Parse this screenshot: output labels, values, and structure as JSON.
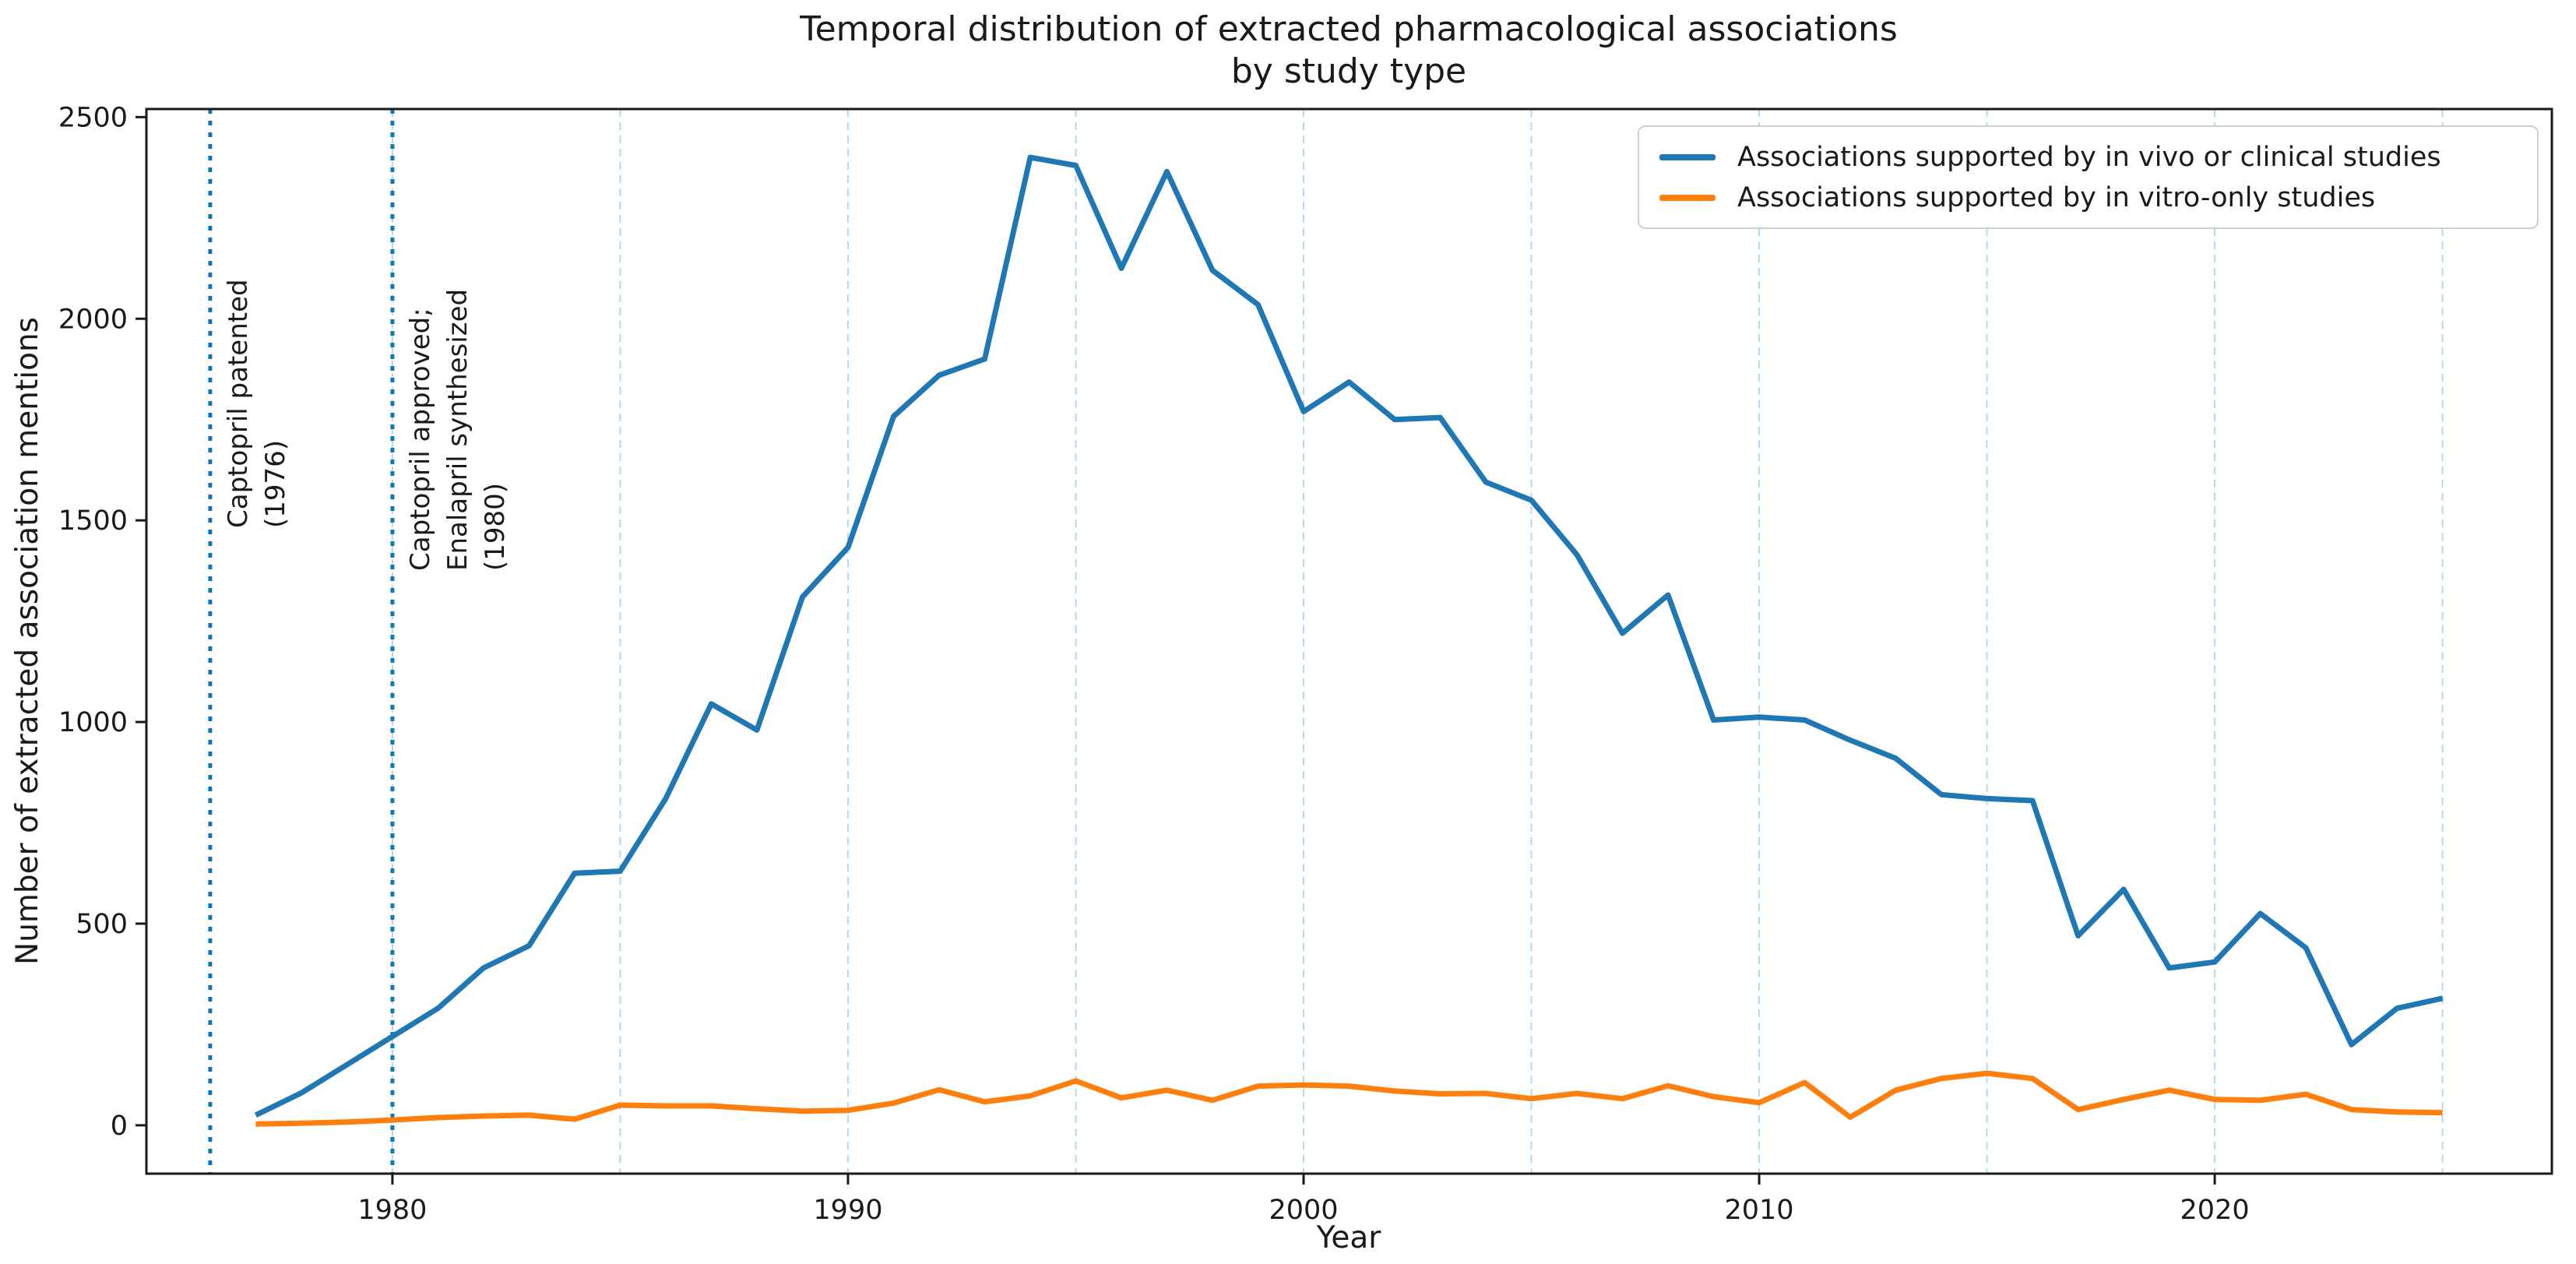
{
  "chart_data": {
    "type": "line",
    "title": "Temporal distribution of extracted pharmacological associations by study type",
    "title_lines": [
      "Temporal distribution of extracted pharmacological associations",
      "by study type"
    ],
    "xlabel": "Year",
    "ylabel": "Number of extracted association mentions",
    "xlim": [
      1974.6,
      2027.4
    ],
    "ylim": [
      -120,
      2520
    ],
    "x_ticks": [
      1980,
      1990,
      2000,
      2010,
      2020
    ],
    "y_ticks": [
      0,
      500,
      1000,
      1500,
      2000,
      2500
    ],
    "x_gridlines": [
      1980,
      1985,
      1990,
      1995,
      2000,
      2005,
      2010,
      2015,
      2020,
      2025
    ],
    "grid_style": "vertical light-blue dashed",
    "legend_location": "upper right",
    "x": [
      1977,
      1978,
      1979,
      1980,
      1981,
      1982,
      1983,
      1984,
      1985,
      1986,
      1987,
      1988,
      1989,
      1990,
      1991,
      1992,
      1993,
      1994,
      1995,
      1996,
      1997,
      1998,
      1999,
      2000,
      2001,
      2002,
      2003,
      2004,
      2005,
      2006,
      2007,
      2008,
      2009,
      2010,
      2011,
      2012,
      2013,
      2014,
      2015,
      2016,
      2017,
      2018,
      2019,
      2020,
      2021,
      2022,
      2023,
      2024,
      2025
    ],
    "series": [
      {
        "name": "Associations supported by in vivo or clinical studies",
        "color": "#1f77b4",
        "values": [
          25,
          80,
          150,
          220,
          290,
          390,
          445,
          625,
          630,
          810,
          1045,
          980,
          1310,
          1433,
          1758,
          1860,
          1900,
          2400,
          2380,
          2125,
          2365,
          2120,
          2035,
          1770,
          1843,
          1750,
          1755,
          1595,
          1550,
          1415,
          1220,
          1315,
          1005,
          1012,
          1005,
          955,
          910,
          820,
          810,
          805,
          470,
          585,
          390,
          405,
          525,
          440,
          200,
          290,
          315
        ]
      },
      {
        "name": "Associations supported by in vitro-only studies",
        "color": "#ff7f0e",
        "values": [
          3,
          5,
          8,
          13,
          19,
          23,
          25,
          15,
          50,
          48,
          48,
          41,
          35,
          37,
          55,
          88,
          58,
          73,
          110,
          68,
          87,
          62,
          97,
          100,
          97,
          85,
          78,
          79,
          66,
          79,
          66,
          98,
          71,
          56,
          106,
          20,
          87,
          116,
          129,
          116,
          39,
          64,
          87,
          64,
          62,
          77,
          39,
          33,
          31
        ]
      }
    ],
    "event_lines": [
      {
        "year": 1976,
        "label": "Captopril patented (1976)",
        "label_lines": [
          "Captopril patented",
          "(1976)"
        ],
        "color": "#0d78b8",
        "style": "dotted"
      },
      {
        "year": 1980,
        "label": "Captopril approved; Enalapril synthesized (1980)",
        "label_lines": [
          "Captopril approved;",
          "Enalapril synthesized",
          "(1980)"
        ],
        "color": "#0d78b8",
        "style": "dotted"
      }
    ]
  },
  "colors": {
    "grid": "#b5d8ec",
    "spine": "#1a1a1a",
    "text": "#1a1a1a",
    "background": "#ffffff",
    "legend_border": "#cfcfcf"
  }
}
